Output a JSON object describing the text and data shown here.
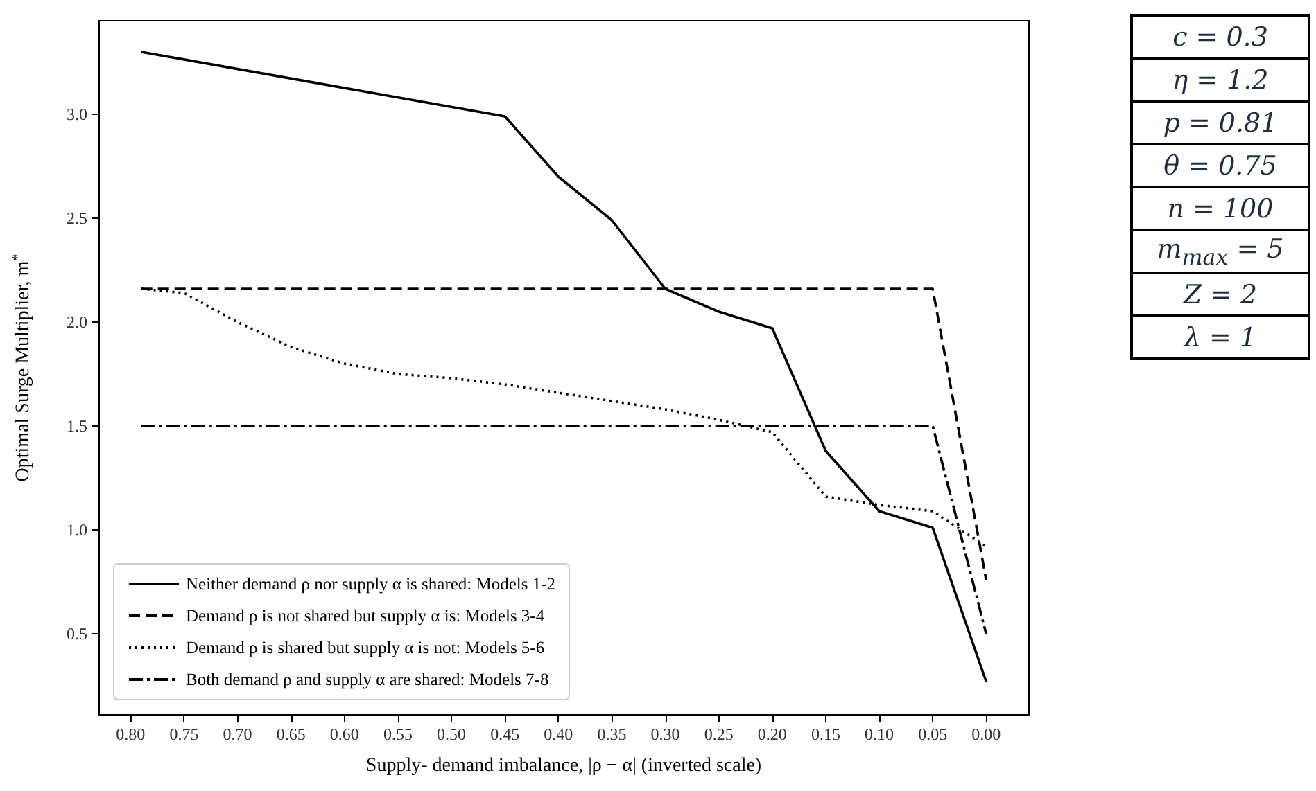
{
  "chart_data": {
    "type": "line",
    "xlabel": "Supply- demand imbalance, |ρ − α| (inverted scale)",
    "ylabel": "Optimal Surge Multiplier, m$^{*}$",
    "xlim": [
      0.83,
      -0.04
    ],
    "xticks": [
      {
        "value": 0.8,
        "label": "0.80"
      },
      {
        "value": 0.75,
        "label": "0.75"
      },
      {
        "value": 0.7,
        "label": "0.70"
      },
      {
        "value": 0.65,
        "label": "0.65"
      },
      {
        "value": 0.6,
        "label": "0.60"
      },
      {
        "value": 0.55,
        "label": "0.55"
      },
      {
        "value": 0.5,
        "label": "0.50"
      },
      {
        "value": 0.45,
        "label": "0.45"
      },
      {
        "value": 0.4,
        "label": "0.40"
      },
      {
        "value": 0.35,
        "label": "0.35"
      },
      {
        "value": 0.3,
        "label": "0.30"
      },
      {
        "value": 0.25,
        "label": "0.25"
      },
      {
        "value": 0.2,
        "label": "0.20"
      },
      {
        "value": 0.15,
        "label": "0.15"
      },
      {
        "value": 0.1,
        "label": "0.10"
      },
      {
        "value": 0.05,
        "label": "0.05"
      },
      {
        "value": 0,
        "label": "0.00"
      }
    ],
    "ylim": [
      0.11,
      3.45
    ],
    "yticks": [
      {
        "value": 0.5,
        "label": "0.5"
      },
      {
        "value": 1,
        "label": "1.0"
      },
      {
        "value": 1.5,
        "label": "1.5"
      },
      {
        "value": 2,
        "label": "2.0"
      },
      {
        "value": 2.5,
        "label": "2.5"
      },
      {
        "value": 3,
        "label": "3.0"
      }
    ],
    "grid": false,
    "legend": "bottom left",
    "marker": "none",
    "series": [
      {
        "name": "Neither demand ρ nor supply α is shared: Models 1-2",
        "color": "#000000",
        "line_style": "solid",
        "x": [
          0.79,
          0.45,
          0.4,
          0.35,
          0.3,
          0.25,
          0.2,
          0.15,
          0.1,
          0.05,
          0
        ],
        "values": [
          3.3,
          2.99,
          2.7,
          2.49,
          2.16,
          2.05,
          1.97,
          1.38,
          1.09,
          1.01,
          0.27
        ]
      },
      {
        "name": "Demand ρ is not shared but supply α is: Models 3-4",
        "color": "#000000",
        "line_style": "dashed",
        "x": [
          0.79,
          0.05,
          0
        ],
        "values": [
          2.16,
          2.16,
          0.76
        ]
      },
      {
        "name": "Demand ρ is shared but supply α is not: Models 5-6",
        "color": "#000000",
        "line_style": "dotted",
        "x": [
          0.79,
          0.75,
          0.7,
          0.65,
          0.6,
          0.55,
          0.5,
          0.45,
          0.4,
          0.35,
          0.3,
          0.25,
          0.2,
          0.15,
          0.1,
          0.05,
          0
        ],
        "values": [
          2.16,
          2.14,
          2.0,
          1.88,
          1.8,
          1.75,
          1.73,
          1.7,
          1.66,
          1.62,
          1.58,
          1.53,
          1.47,
          1.16,
          1.12,
          1.09,
          0.92
        ]
      },
      {
        "name": "Both demand ρ and supply α are shared: Models 7-8",
        "color": "#000000",
        "line_style": "dashdot",
        "x": [
          0.79,
          0.05,
          0
        ],
        "values": [
          1.5,
          1.5,
          0.5
        ]
      }
    ],
    "annotations": [
      "c = 0.3",
      "η = 1.2",
      "p = 0.81",
      "θ = 0.75",
      "n = 100",
      "m$_{max}$ = 5",
      "Z = 2",
      "λ = 1"
    ]
  }
}
